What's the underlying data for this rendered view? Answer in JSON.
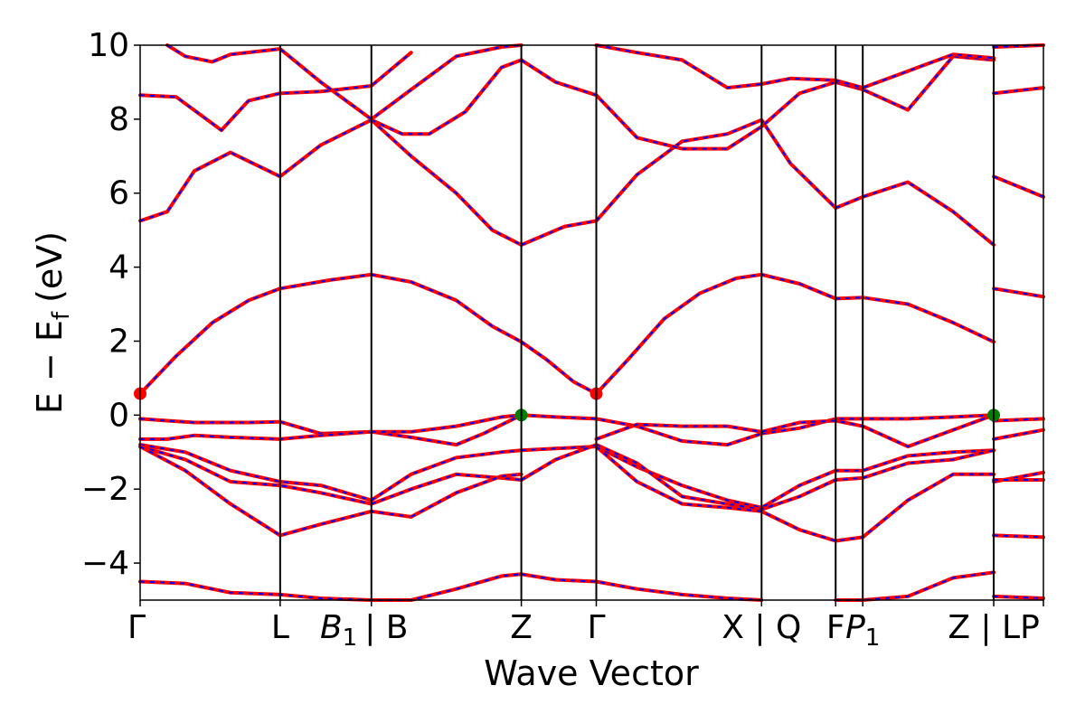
{
  "chart_data": {
    "type": "line",
    "title": "",
    "xlabel": "Wave Vector",
    "ylabel_parts": {
      "main": "E − E",
      "sub": "f",
      "unit": "(eV)"
    },
    "ylim": [
      -5,
      10
    ],
    "xlim": [
      0,
      1
    ],
    "yticks": [
      -4,
      -2,
      0,
      2,
      4,
      6,
      8,
      10
    ],
    "ytick_labels": [
      "−4",
      "−2",
      "0",
      "2",
      "4",
      "6",
      "8",
      "10"
    ],
    "high_symmetry_points": [
      {
        "x": 0.0,
        "label": "Γ"
      },
      {
        "x": 0.155,
        "label": "L"
      },
      {
        "x": 0.256,
        "label": "| B",
        "italic_prefix": "B",
        "italic_sub": "1"
      },
      {
        "x": 0.422,
        "label": "Z"
      },
      {
        "x": 0.505,
        "label": "Γ"
      },
      {
        "x": 0.688,
        "label": "X | Q"
      },
      {
        "x": 0.77,
        "label": "F"
      },
      {
        "x": 0.8,
        "label": "",
        "italic_prefix": "P",
        "italic_sub": "1"
      },
      {
        "x": 0.945,
        "label": "Z | LP"
      },
      {
        "x": 1.0,
        "label": ""
      }
    ],
    "series_style": {
      "line_color": "#ff0000",
      "overlay_color": "#0000ff",
      "overlay_style": "dashed"
    },
    "markers": [
      {
        "x": 0.0,
        "y": 0.58,
        "color": "#ff0000"
      },
      {
        "x": 0.505,
        "y": 0.58,
        "color": "#ff0000"
      },
      {
        "x": 0.422,
        "y": 0.0,
        "color": "#008000"
      },
      {
        "x": 0.945,
        "y": 0.0,
        "color": "#008000"
      }
    ],
    "bands": [
      {
        "x": [
          0,
          0.04,
          0.08,
          0.12,
          0.155,
          0.21,
          0.256
        ],
        "y": [
          0.58,
          1.6,
          2.5,
          3.1,
          3.42,
          3.65,
          3.8
        ]
      },
      {
        "x": [
          0.256,
          0.3,
          0.35,
          0.39,
          0.422
        ],
        "y": [
          3.8,
          3.6,
          3.1,
          2.4,
          1.98
        ]
      },
      {
        "x": [
          0.422,
          0.45,
          0.48,
          0.505
        ],
        "y": [
          1.98,
          1.5,
          0.9,
          0.58
        ]
      },
      {
        "x": [
          0.505,
          0.54,
          0.58,
          0.62,
          0.66,
          0.688,
          0.73,
          0.77
        ],
        "y": [
          0.58,
          1.5,
          2.6,
          3.3,
          3.7,
          3.8,
          3.55,
          3.15
        ]
      },
      {
        "x": [
          0.77,
          0.8,
          0.85,
          0.9,
          0.945
        ],
        "y": [
          3.15,
          3.18,
          3.0,
          2.5,
          1.98
        ]
      },
      {
        "x": [
          0.945,
          1.0
        ],
        "y": [
          3.42,
          3.2
        ]
      },
      {
        "x": [
          0,
          0.03,
          0.06,
          0.1,
          0.155,
          0.2,
          0.256
        ],
        "y": [
          5.25,
          5.5,
          6.6,
          7.1,
          6.45,
          7.3,
          7.98
        ]
      },
      {
        "x": [
          0.256,
          0.3,
          0.35,
          0.39,
          0.422
        ],
        "y": [
          7.98,
          7.0,
          6.0,
          5.0,
          4.6
        ]
      },
      {
        "x": [
          0.422,
          0.47,
          0.505
        ],
        "y": [
          4.6,
          5.1,
          5.25
        ]
      },
      {
        "x": [
          0.505,
          0.55,
          0.6,
          0.65,
          0.688,
          0.72,
          0.77
        ],
        "y": [
          5.25,
          6.5,
          7.4,
          7.6,
          7.98,
          6.8,
          5.6
        ]
      },
      {
        "x": [
          0.77,
          0.8,
          0.85,
          0.9,
          0.945
        ],
        "y": [
          5.6,
          5.9,
          6.3,
          5.5,
          4.6
        ]
      },
      {
        "x": [
          0.945,
          1.0
        ],
        "y": [
          6.45,
          5.9
        ]
      },
      {
        "x": [
          0,
          0.04,
          0.09,
          0.12,
          0.155,
          0.2,
          0.256,
          0.3
        ],
        "y": [
          8.65,
          8.6,
          7.7,
          8.5,
          8.7,
          8.75,
          8.9,
          9.8
        ]
      },
      {
        "x": [
          0.256,
          0.29,
          0.32,
          0.36,
          0.4,
          0.422
        ],
        "y": [
          7.98,
          7.6,
          7.6,
          8.2,
          9.4,
          9.6
        ]
      },
      {
        "x": [
          0.422,
          0.46,
          0.505,
          0.55,
          0.6,
          0.65,
          0.688,
          0.73,
          0.77
        ],
        "y": [
          9.6,
          9.0,
          8.65,
          7.5,
          7.2,
          7.2,
          7.8,
          8.7,
          9.0
        ]
      },
      {
        "x": [
          0.77,
          0.8,
          0.85,
          0.9,
          0.945
        ],
        "y": [
          9.0,
          8.8,
          8.25,
          9.7,
          9.6
        ]
      },
      {
        "x": [
          0.945,
          1.0
        ],
        "y": [
          8.7,
          8.85
        ]
      },
      {
        "x": [
          0,
          0.03,
          0.06,
          0.09,
          0.12,
          0.155
        ],
        "y": [
          -0.1,
          -0.15,
          -0.2,
          -0.2,
          -0.2,
          -0.18
        ]
      },
      {
        "x": [
          0.155,
          0.2,
          0.256,
          0.3,
          0.35,
          0.38,
          0.422
        ],
        "y": [
          -0.18,
          -0.5,
          -0.45,
          -0.6,
          -0.8,
          -0.5,
          0.0
        ]
      },
      {
        "x": [
          0.422,
          0.46,
          0.505,
          0.55,
          0.6,
          0.65,
          0.688
        ],
        "y": [
          0.0,
          -0.05,
          -0.1,
          -0.3,
          -0.7,
          -0.8,
          -0.5
        ]
      },
      {
        "x": [
          0.688,
          0.73,
          0.77,
          0.8,
          0.85,
          0.9,
          0.945
        ],
        "y": [
          -0.5,
          -0.35,
          -0.1,
          -0.1,
          -0.1,
          -0.05,
          0.0
        ]
      },
      {
        "x": [
          0.945,
          1.0
        ],
        "y": [
          -0.15,
          -0.1
        ]
      },
      {
        "x": [
          0,
          0.03,
          0.06,
          0.1,
          0.155,
          0.2,
          0.256
        ],
        "y": [
          -0.65,
          -0.65,
          -0.55,
          -0.6,
          -0.65,
          -0.55,
          -0.45
        ]
      },
      {
        "x": [
          0.256,
          0.3,
          0.35,
          0.4,
          0.422
        ],
        "y": [
          -0.45,
          -0.45,
          -0.3,
          -0.05,
          0.0
        ]
      },
      {
        "x": [
          0.505,
          0.55,
          0.6,
          0.65,
          0.688,
          0.73,
          0.77,
          0.8,
          0.85,
          0.9,
          0.945
        ],
        "y": [
          -0.65,
          -0.25,
          -0.3,
          -0.3,
          -0.45,
          -0.2,
          -0.15,
          -0.3,
          -0.85,
          -0.4,
          0.0
        ]
      },
      {
        "x": [
          0.945,
          1.0
        ],
        "y": [
          -0.65,
          -0.4
        ]
      },
      {
        "x": [
          0,
          0.05,
          0.1,
          0.155,
          0.2,
          0.256
        ],
        "y": [
          -0.8,
          -1.0,
          -1.5,
          -1.8,
          -1.9,
          -2.3
        ]
      },
      {
        "x": [
          0.256,
          0.3,
          0.35,
          0.4,
          0.422
        ],
        "y": [
          -2.3,
          -1.6,
          -1.15,
          -1.0,
          -0.95
        ]
      },
      {
        "x": [
          0.422,
          0.46,
          0.505
        ],
        "y": [
          -0.95,
          -0.9,
          -0.85
        ]
      },
      {
        "x": [
          0.505,
          0.55,
          0.6,
          0.65,
          0.688,
          0.73,
          0.77,
          0.8,
          0.85,
          0.9,
          0.945
        ],
        "y": [
          -0.85,
          -1.4,
          -1.9,
          -2.3,
          -2.5,
          -1.9,
          -1.5,
          -1.5,
          -1.1,
          -1.0,
          -0.95
        ]
      },
      {
        "x": [
          0.945,
          1.0
        ],
        "y": [
          -1.8,
          -1.55
        ]
      },
      {
        "x": [
          0,
          0.05,
          0.1,
          0.155,
          0.2,
          0.256
        ],
        "y": [
          -0.85,
          -1.2,
          -1.8,
          -1.9,
          -2.1,
          -2.4
        ]
      },
      {
        "x": [
          0.256,
          0.3,
          0.35,
          0.4,
          0.422
        ],
        "y": [
          -2.4,
          -2.0,
          -1.6,
          -1.7,
          -1.75
        ]
      },
      {
        "x": [
          0.422,
          0.46,
          0.505
        ],
        "y": [
          -1.75,
          -1.2,
          -0.8
        ]
      },
      {
        "x": [
          0.505,
          0.55,
          0.6,
          0.65,
          0.688,
          0.73,
          0.77,
          0.8,
          0.85,
          0.9,
          0.945
        ],
        "y": [
          -0.8,
          -1.3,
          -2.2,
          -2.4,
          -2.55,
          -2.2,
          -1.75,
          -1.7,
          -1.3,
          -1.2,
          -0.95
        ]
      },
      {
        "x": [
          0.945,
          1.0
        ],
        "y": [
          -1.75,
          -1.75
        ]
      },
      {
        "x": [
          0,
          0.05,
          0.1,
          0.155,
          0.2,
          0.256,
          0.3
        ],
        "y": [
          -0.85,
          -1.5,
          -2.4,
          -3.25,
          -2.95,
          -2.6,
          -2.75
        ]
      },
      {
        "x": [
          0.3,
          0.35,
          0.4,
          0.422
        ],
        "y": [
          -2.75,
          -2.1,
          -1.65,
          -1.6
        ]
      },
      {
        "x": [
          0.505,
          0.55,
          0.6,
          0.65,
          0.688,
          0.73,
          0.77,
          0.8,
          0.85,
          0.9,
          0.945
        ],
        "y": [
          -0.85,
          -1.8,
          -2.4,
          -2.5,
          -2.6,
          -3.1,
          -3.4,
          -3.3,
          -2.3,
          -1.6,
          -1.6
        ]
      },
      {
        "x": [
          0.945,
          1.0
        ],
        "y": [
          -3.25,
          -3.3
        ]
      },
      {
        "x": [
          0,
          0.05,
          0.1,
          0.155,
          0.2,
          0.256,
          0.3,
          0.35,
          0.4,
          0.422
        ],
        "y": [
          -4.5,
          -4.55,
          -4.8,
          -4.85,
          -4.95,
          -5.1,
          -5.0,
          -4.7,
          -4.35,
          -4.3
        ]
      },
      {
        "x": [
          0.422,
          0.46,
          0.505,
          0.55,
          0.6,
          0.65,
          0.688
        ],
        "y": [
          -4.3,
          -4.45,
          -4.5,
          -4.7,
          -4.85,
          -4.95,
          -5.05
        ]
      },
      {
        "x": [
          0.77,
          0.8,
          0.85,
          0.9,
          0.945
        ],
        "y": [
          -5.05,
          -5.0,
          -4.9,
          -4.4,
          -4.25
        ]
      },
      {
        "x": [
          0.945,
          1.0
        ],
        "y": [
          -4.9,
          -4.95
        ]
      },
      {
        "x": [
          0.03,
          0.05,
          0.08,
          0.1,
          0.155,
          0.2,
          0.256,
          0.3,
          0.35,
          0.4,
          0.422
        ],
        "y": [
          10.0,
          9.7,
          9.55,
          9.75,
          9.9,
          9.0,
          8.0,
          8.8,
          9.7,
          9.95,
          10.0
        ]
      },
      {
        "x": [
          0.505,
          0.55,
          0.6,
          0.65,
          0.688,
          0.72,
          0.77,
          0.8,
          0.85,
          0.9,
          0.945
        ],
        "y": [
          10.0,
          9.8,
          9.6,
          8.85,
          8.95,
          9.1,
          9.05,
          8.85,
          9.3,
          9.75,
          9.65
        ]
      },
      {
        "x": [
          0.945,
          1.0
        ],
        "y": [
          9.95,
          10.0
        ]
      }
    ]
  }
}
